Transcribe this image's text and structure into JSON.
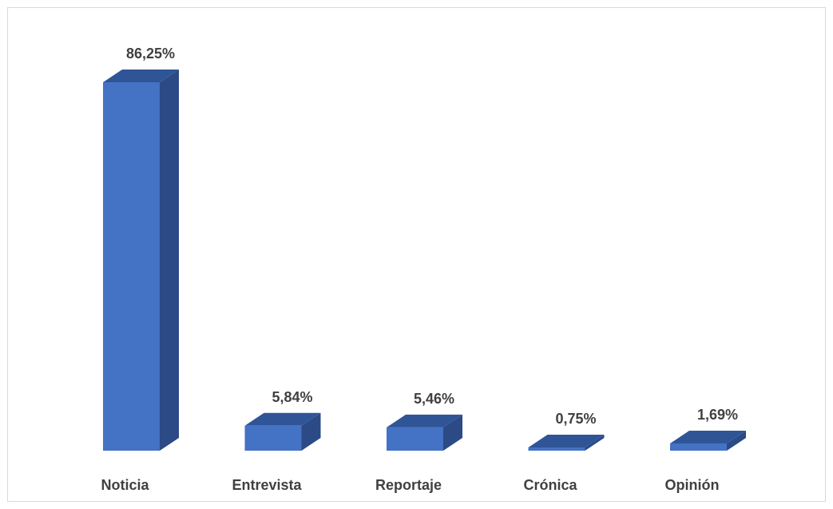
{
  "chart_data": {
    "type": "bar",
    "style": "3d-column",
    "categories": [
      "Noticia",
      "Entrevista",
      "Reportaje",
      "Crónica",
      "Opinión"
    ],
    "values": [
      86.25,
      5.84,
      5.46,
      0.75,
      1.69
    ],
    "value_labels": [
      "86,25%",
      "5,84%",
      "5,46%",
      "0,75%",
      "1,69%"
    ],
    "ylim": [
      0,
      90
    ],
    "grid": false,
    "legend": "none",
    "colors": {
      "front": "#4472C4",
      "side": "#2B4A86",
      "top": "#2F5597",
      "text": "#404040"
    }
  }
}
